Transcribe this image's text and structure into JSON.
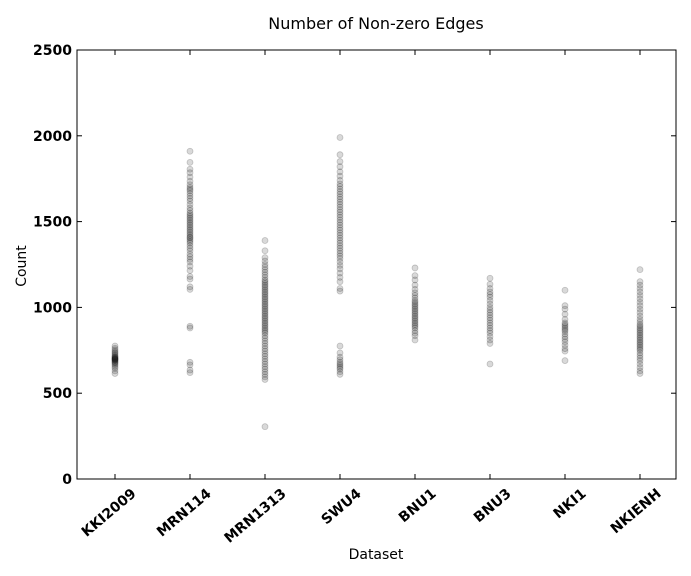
{
  "chart_data": {
    "type": "scatter",
    "title": "Number of Non-zero Edges",
    "xlabel": "Dataset",
    "ylabel": "Count",
    "ylim": [
      0,
      2500
    ],
    "yticks": [
      0,
      500,
      1000,
      1500,
      2000,
      2500
    ],
    "categories": [
      "KKI2009",
      "MRN114",
      "MRN1313",
      "SWU4",
      "BNU1",
      "BNU3",
      "NKI1",
      "NKIENH"
    ],
    "grid": false,
    "legend": "none",
    "point_color": "#000000",
    "point_opacity": 0.15,
    "series": [
      {
        "category": "KKI2009",
        "values": [
          615,
          630,
          645,
          655,
          665,
          672,
          678,
          683,
          688,
          692,
          695,
          698,
          700,
          703,
          706,
          710,
          714,
          720,
          728,
          735,
          742,
          752,
          762,
          775
        ]
      },
      {
        "category": "MRN114",
        "values": [
          620,
          635,
          665,
          680,
          880,
          890,
          1105,
          1120,
          1165,
          1180,
          1215,
          1240,
          1265,
          1280,
          1295,
          1310,
          1330,
          1345,
          1360,
          1375,
          1385,
          1395,
          1405,
          1410,
          1420,
          1430,
          1440,
          1450,
          1460,
          1470,
          1480,
          1490,
          1500,
          1510,
          1520,
          1530,
          1540,
          1550,
          1565,
          1580,
          1600,
          1620,
          1635,
          1650,
          1665,
          1680,
          1690,
          1700,
          1715,
          1735,
          1760,
          1785,
          1805,
          1845,
          1910
        ]
      },
      {
        "category": "MRN1313",
        "values": [
          305,
          580,
          595,
          610,
          625,
          640,
          655,
          670,
          685,
          700,
          715,
          730,
          745,
          760,
          775,
          790,
          805,
          820,
          835,
          850,
          860,
          870,
          880,
          890,
          900,
          910,
          920,
          930,
          940,
          950,
          960,
          970,
          980,
          990,
          1000,
          1010,
          1020,
          1030,
          1040,
          1050,
          1060,
          1070,
          1080,
          1090,
          1100,
          1110,
          1120,
          1130,
          1140,
          1150,
          1160,
          1175,
          1190,
          1205,
          1220,
          1235,
          1250,
          1270,
          1290,
          1330,
          1390
        ]
      },
      {
        "category": "SWU4",
        "values": [
          610,
          625,
          640,
          650,
          660,
          670,
          680,
          695,
          710,
          735,
          775,
          1095,
          1110,
          1150,
          1175,
          1200,
          1225,
          1245,
          1265,
          1285,
          1300,
          1315,
          1330,
          1345,
          1360,
          1375,
          1390,
          1405,
          1420,
          1435,
          1450,
          1465,
          1480,
          1495,
          1510,
          1525,
          1540,
          1555,
          1570,
          1585,
          1600,
          1615,
          1630,
          1645,
          1660,
          1675,
          1690,
          1705,
          1720,
          1740,
          1765,
          1790,
          1820,
          1850,
          1890,
          1990
        ]
      },
      {
        "category": "BNU1",
        "values": [
          810,
          835,
          850,
          865,
          880,
          890,
          900,
          910,
          920,
          930,
          940,
          950,
          960,
          970,
          980,
          990,
          1000,
          1010,
          1020,
          1030,
          1040,
          1055,
          1070,
          1085,
          1105,
          1130,
          1160,
          1185,
          1230
        ]
      },
      {
        "category": "BNU3",
        "values": [
          670,
          790,
          810,
          830,
          850,
          865,
          880,
          895,
          910,
          925,
          940,
          955,
          970,
          985,
          1000,
          1020,
          1040,
          1060,
          1075,
          1090,
          1110,
          1135,
          1170
        ]
      },
      {
        "category": "NKI1",
        "values": [
          690,
          745,
          760,
          780,
          800,
          815,
          830,
          845,
          860,
          870,
          880,
          890,
          900,
          910,
          930,
          960,
          990,
          1010,
          1100
        ]
      },
      {
        "category": "NKIENH",
        "values": [
          615,
          630,
          650,
          670,
          690,
          705,
          720,
          735,
          750,
          760,
          770,
          780,
          790,
          800,
          810,
          820,
          830,
          840,
          850,
          860,
          870,
          880,
          890,
          900,
          915,
          930,
          950,
          970,
          990,
          1010,
          1030,
          1050,
          1070,
          1090,
          1110,
          1130,
          1150,
          1220
        ]
      }
    ]
  }
}
